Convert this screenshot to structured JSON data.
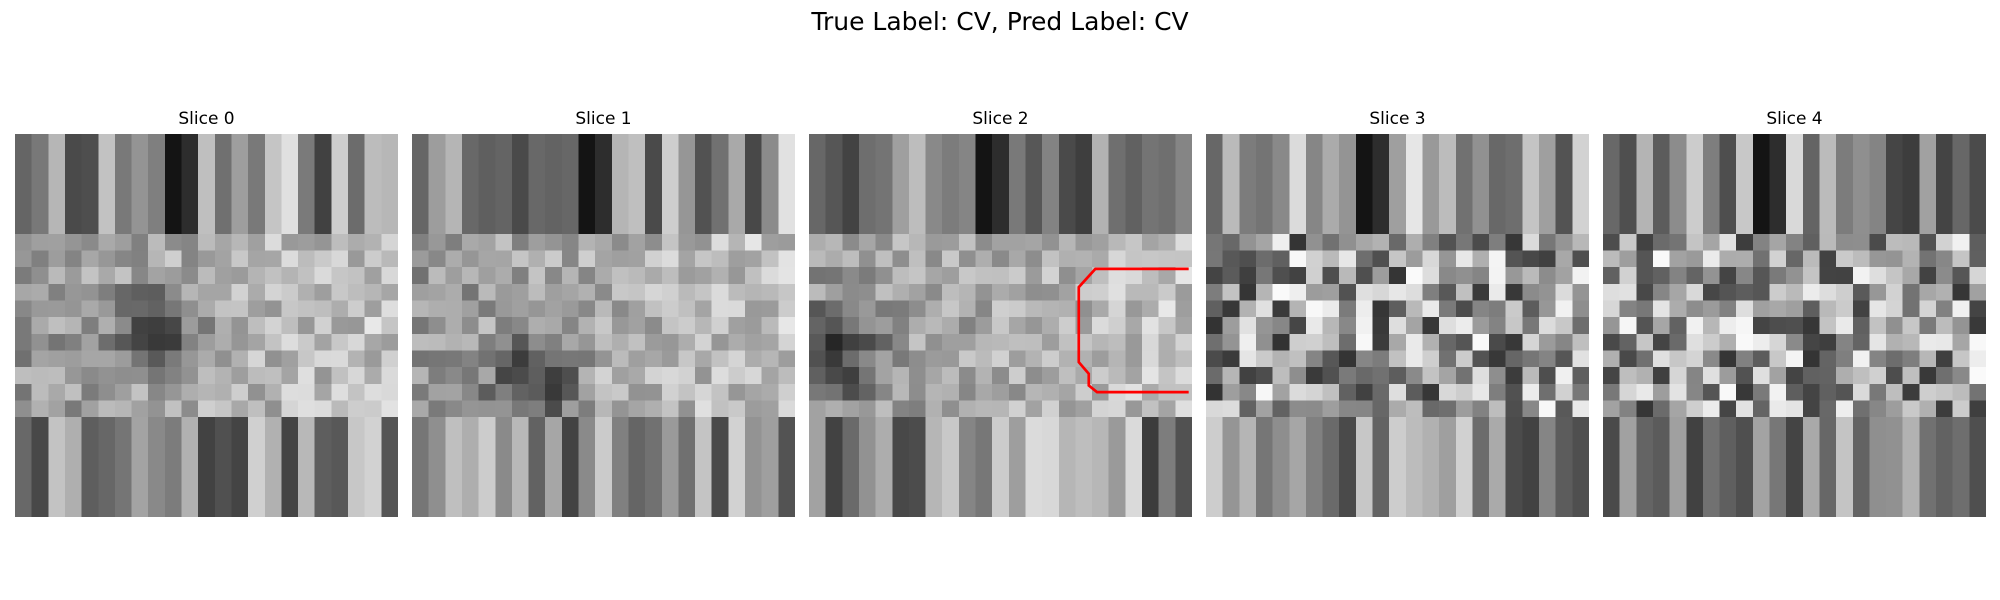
{
  "figure": {
    "suptitle": "True Label: CV, Pred Label: CV"
  },
  "panels": [
    {
      "title": "Slice 0",
      "seed": 11,
      "style": "smooth",
      "top_band_darkcol": 18,
      "dark_blob": [
        0.35,
        0.5
      ],
      "contour": false
    },
    {
      "title": "Slice 1",
      "seed": 23,
      "style": "smooth",
      "top_band_darkcol": 19,
      "dark_blob": [
        0.3,
        0.62
      ],
      "contour": false
    },
    {
      "title": "Slice 2",
      "seed": 37,
      "style": "smooth",
      "top_band_darkcol": 20,
      "dark_blob": [
        0.05,
        0.55
      ],
      "contour": true
    },
    {
      "title": "Slice 3",
      "seed": 51,
      "style": "noisy",
      "top_band_darkcol": 17,
      "dark_blob": null,
      "contour": false
    },
    {
      "title": "Slice 4",
      "seed": 53,
      "style": "noisy",
      "top_band_darkcol": 17,
      "dark_blob": null,
      "contour": false
    }
  ],
  "overlay": {
    "contour_color": "#ff0000"
  }
}
